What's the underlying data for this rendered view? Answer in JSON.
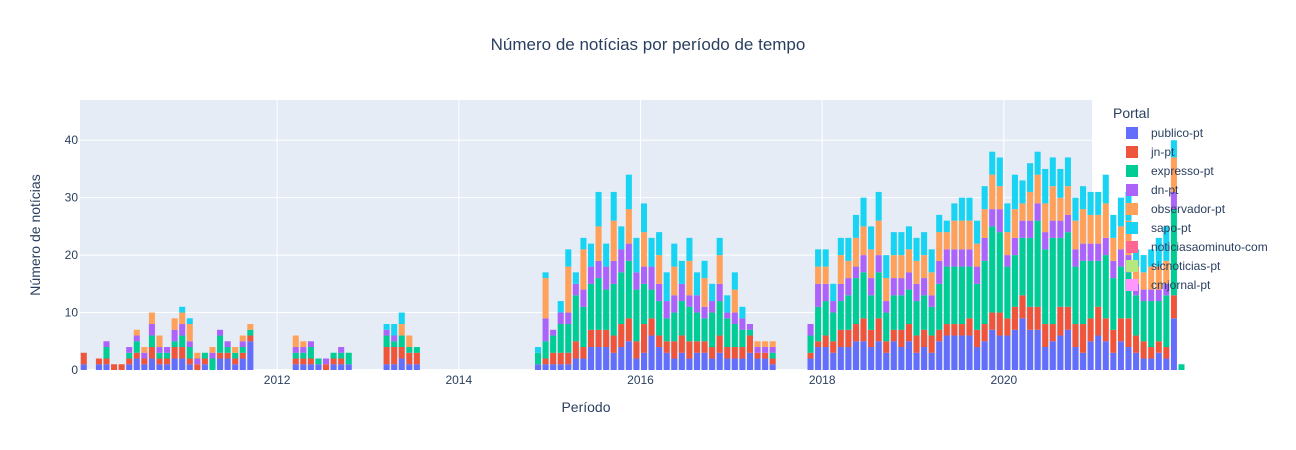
{
  "chart_data": {
    "type": "bar",
    "stacked": true,
    "title": "Número de notícias por período de tempo",
    "xlabel": "Período",
    "ylabel": "Número de notícias",
    "ylim": [
      0,
      47
    ],
    "yticks": [
      0,
      10,
      20,
      30,
      40
    ],
    "xticks": [
      {
        "x": 2012,
        "label": "2012"
      },
      {
        "x": 2014,
        "label": "2014"
      },
      {
        "x": 2016,
        "label": "2016"
      },
      {
        "x": 2018,
        "label": "2018"
      },
      {
        "x": 2020,
        "label": "2020"
      }
    ],
    "xlim": [
      2009.83,
      2020.97
    ],
    "period_start": 2009.83,
    "periods_per_year": 12,
    "grid": true,
    "legend_title": "Portal",
    "legend_position": "right",
    "colors": [
      "#636efa",
      "#EF553B",
      "#00cc96",
      "#ab63fa",
      "#FFA15A",
      "#19d3f3",
      "#FF6692",
      "#B6E880",
      "#FF97FF"
    ],
    "series": [
      {
        "name": "publico-pt",
        "values": [
          1,
          0,
          1,
          1,
          0,
          0,
          1,
          2,
          1,
          2,
          1,
          1,
          2,
          2,
          1,
          0,
          1,
          0,
          2,
          2,
          1,
          2,
          5,
          0,
          0,
          0,
          0,
          0,
          1,
          1,
          1,
          1,
          0,
          1,
          1,
          1,
          0,
          0,
          0,
          0,
          1,
          1,
          2,
          1,
          1,
          0,
          0,
          0,
          0,
          0,
          0,
          0,
          0,
          0,
          0,
          0,
          0,
          0,
          0,
          0,
          1,
          1,
          1,
          1,
          1,
          2,
          2,
          4,
          4,
          4,
          3,
          4,
          5,
          2,
          3,
          6,
          4,
          3,
          2,
          3,
          2,
          3,
          3,
          2,
          3,
          2,
          2,
          2,
          3,
          2,
          2,
          1,
          0,
          0,
          0,
          0,
          2,
          4,
          4,
          3,
          4,
          4,
          5,
          5,
          4,
          5,
          3,
          5,
          4,
          5,
          3,
          4,
          3,
          5,
          6,
          6,
          6,
          6,
          4,
          5,
          7,
          6,
          6,
          7,
          9,
          7,
          7,
          4,
          5,
          6,
          7,
          4,
          3,
          5,
          6,
          5,
          3,
          5,
          4,
          3,
          2,
          2,
          3,
          2,
          9,
          0
        ]
      },
      {
        "name": "jn-pt",
        "values": [
          2,
          0,
          1,
          1,
          1,
          1,
          1,
          1,
          1,
          2,
          1,
          1,
          2,
          2,
          1,
          1,
          1,
          0,
          1,
          1,
          1,
          1,
          1,
          0,
          0,
          0,
          0,
          0,
          1,
          1,
          1,
          0,
          1,
          1,
          1,
          0,
          0,
          0,
          0,
          0,
          3,
          3,
          2,
          2,
          2,
          0,
          0,
          0,
          0,
          0,
          0,
          0,
          0,
          0,
          0,
          0,
          0,
          0,
          0,
          0,
          0,
          1,
          2,
          2,
          2,
          3,
          2,
          3,
          3,
          3,
          3,
          4,
          4,
          3,
          5,
          3,
          2,
          2,
          3,
          3,
          3,
          2,
          2,
          2,
          3,
          2,
          2,
          2,
          3,
          1,
          1,
          1,
          0,
          0,
          0,
          0,
          1,
          1,
          2,
          2,
          3,
          3,
          3,
          4,
          3,
          4,
          2,
          2,
          3,
          3,
          3,
          3,
          3,
          2,
          2,
          2,
          2,
          3,
          3,
          3,
          3,
          4,
          3,
          4,
          4,
          4,
          4,
          4,
          3,
          5,
          4,
          4,
          5,
          4,
          5,
          4,
          4,
          4,
          5,
          3,
          3,
          2,
          2,
          2,
          4,
          0
        ]
      },
      {
        "name": "expresso-pt",
        "values": [
          0,
          0,
          0,
          2,
          0,
          0,
          1,
          2,
          0,
          2,
          1,
          1,
          1,
          2,
          2,
          0,
          1,
          2,
          3,
          1,
          1,
          1,
          1,
          0,
          0,
          0,
          0,
          0,
          1,
          1,
          2,
          1,
          0,
          1,
          1,
          2,
          0,
          0,
          0,
          0,
          2,
          1,
          2,
          1,
          1,
          0,
          0,
          0,
          0,
          0,
          0,
          0,
          0,
          0,
          0,
          0,
          0,
          0,
          0,
          0,
          2,
          3,
          3,
          5,
          5,
          8,
          7,
          8,
          9,
          7,
          9,
          9,
          10,
          9,
          7,
          5,
          6,
          4,
          5,
          6,
          6,
          5,
          4,
          6,
          6,
          5,
          4,
          3,
          1,
          0,
          0,
          1,
          0,
          0,
          0,
          0,
          3,
          6,
          6,
          5,
          5,
          6,
          8,
          8,
          6,
          8,
          5,
          6,
          6,
          6,
          6,
          6,
          5,
          8,
          10,
          10,
          10,
          9,
          8,
          11,
          15,
          14,
          9,
          9,
          10,
          12,
          15,
          13,
          15,
          12,
          13,
          10,
          11,
          10,
          8,
          11,
          9,
          9,
          8,
          7,
          7,
          8,
          7,
          9,
          15,
          1
        ]
      },
      {
        "name": "dn-pt",
        "values": [
          0,
          0,
          0,
          1,
          0,
          0,
          1,
          1,
          1,
          2,
          1,
          1,
          2,
          2,
          1,
          1,
          0,
          1,
          1,
          1,
          0,
          1,
          0,
          0,
          0,
          0,
          0,
          0,
          1,
          1,
          1,
          0,
          1,
          0,
          1,
          0,
          0,
          0,
          0,
          0,
          1,
          1,
          0,
          0,
          0,
          0,
          0,
          0,
          0,
          0,
          0,
          0,
          0,
          0,
          0,
          0,
          0,
          0,
          0,
          0,
          0,
          4,
          1,
          2,
          2,
          2,
          3,
          3,
          3,
          4,
          4,
          4,
          3,
          3,
          3,
          4,
          3,
          3,
          3,
          3,
          2,
          3,
          2,
          2,
          3,
          1,
          2,
          2,
          1,
          1,
          1,
          1,
          0,
          0,
          0,
          0,
          2,
          4,
          3,
          2,
          3,
          3,
          2,
          3,
          3,
          3,
          2,
          3,
          3,
          3,
          3,
          3,
          2,
          4,
          3,
          3,
          3,
          3,
          3,
          4,
          3,
          4,
          2,
          3,
          3,
          3,
          3,
          3,
          3,
          3,
          3,
          3,
          3,
          3,
          3,
          3,
          3,
          3,
          3,
          2,
          2,
          2,
          2,
          2,
          3,
          0
        ]
      },
      {
        "name": "observador-pt",
        "values": [
          0,
          0,
          0,
          0,
          0,
          0,
          0,
          1,
          1,
          2,
          2,
          0,
          2,
          2,
          3,
          1,
          0,
          1,
          0,
          0,
          1,
          1,
          1,
          0,
          0,
          0,
          0,
          0,
          2,
          1,
          0,
          0,
          0,
          0,
          0,
          0,
          0,
          0,
          0,
          0,
          0,
          0,
          2,
          2,
          0,
          0,
          0,
          0,
          0,
          0,
          0,
          0,
          0,
          0,
          0,
          0,
          0,
          0,
          0,
          0,
          0,
          7,
          0,
          0,
          8,
          0,
          7,
          0,
          6,
          0,
          7,
          0,
          6,
          0,
          6,
          0,
          5,
          0,
          5,
          0,
          6,
          0,
          5,
          0,
          5,
          0,
          4,
          0,
          0,
          1,
          1,
          1,
          0,
          0,
          0,
          0,
          0,
          3,
          3,
          0,
          5,
          3,
          5,
          5,
          5,
          6,
          4,
          4,
          4,
          4,
          4,
          4,
          4,
          5,
          3,
          5,
          5,
          5,
          4,
          5,
          6,
          4,
          4,
          5,
          3,
          5,
          5,
          5,
          6,
          4,
          5,
          5,
          6,
          5,
          5,
          6,
          4,
          4,
          6,
          3,
          3,
          4,
          4,
          4,
          6,
          0
        ]
      },
      {
        "name": "sapo-pt",
        "values": [
          0,
          0,
          0,
          0,
          0,
          0,
          0,
          0,
          0,
          0,
          0,
          0,
          0,
          1,
          1,
          0,
          0,
          0,
          0,
          0,
          0,
          0,
          0,
          0,
          0,
          0,
          0,
          0,
          0,
          0,
          0,
          0,
          0,
          0,
          0,
          0,
          0,
          0,
          0,
          0,
          1,
          2,
          2,
          0,
          0,
          0,
          0,
          0,
          0,
          0,
          0,
          0,
          0,
          0,
          0,
          0,
          0,
          0,
          0,
          0,
          1,
          1,
          0,
          2,
          3,
          2,
          2,
          4,
          6,
          4,
          5,
          4,
          6,
          6,
          5,
          5,
          4,
          5,
          4,
          4,
          4,
          4,
          3,
          3,
          3,
          3,
          3,
          2,
          0,
          0,
          0,
          0,
          0,
          0,
          0,
          0,
          0,
          3,
          3,
          3,
          3,
          4,
          4,
          5,
          4,
          5,
          4,
          4,
          4,
          4,
          4,
          4,
          4,
          3,
          2,
          3,
          4,
          4,
          4,
          4,
          4,
          5,
          5,
          6,
          4,
          5,
          4,
          6,
          5,
          5,
          5,
          4,
          4,
          4,
          4,
          5,
          4,
          5,
          5,
          3,
          3,
          3,
          5,
          6,
          3,
          0
        ]
      },
      {
        "name": "noticiasaominuto-com",
        "values": [
          0,
          0,
          0,
          0,
          0,
          0,
          0,
          0,
          0,
          0,
          0,
          0,
          0,
          0,
          0,
          0,
          0,
          0,
          0,
          0,
          0,
          0,
          0,
          0,
          0,
          0,
          0,
          0,
          0,
          0,
          0,
          0,
          0,
          0,
          0,
          0,
          0,
          0,
          0,
          0,
          0,
          0,
          0,
          0,
          0,
          0,
          0,
          0,
          0,
          0,
          0,
          0,
          0,
          0,
          0,
          0,
          0,
          0,
          0,
          0,
          0,
          0,
          0,
          0,
          0,
          0,
          0,
          0,
          0,
          0,
          0,
          0,
          0,
          0,
          0,
          0,
          0,
          0,
          0,
          0,
          0,
          0,
          0,
          0,
          0,
          0,
          0,
          0,
          0,
          0,
          0,
          0,
          0,
          0,
          0,
          0,
          0,
          0,
          0,
          0,
          0,
          0,
          0,
          0,
          0,
          0,
          0,
          0,
          0,
          0,
          0,
          0,
          0,
          0,
          0,
          0,
          0,
          0,
          0,
          0,
          0,
          0,
          0,
          0,
          0,
          0,
          0,
          0,
          0,
          0,
          0,
          0,
          0,
          0,
          0,
          0,
          0,
          0,
          0,
          0,
          0,
          0,
          0,
          0,
          0,
          0
        ]
      },
      {
        "name": "sicnoticias-pt",
        "values": [
          0,
          0,
          0,
          0,
          0,
          0,
          0,
          0,
          0,
          0,
          0,
          0,
          0,
          0,
          0,
          0,
          0,
          0,
          0,
          0,
          0,
          0,
          0,
          0,
          0,
          0,
          0,
          0,
          0,
          0,
          0,
          0,
          0,
          0,
          0,
          0,
          0,
          0,
          0,
          0,
          0,
          0,
          0,
          0,
          0,
          0,
          0,
          0,
          0,
          0,
          0,
          0,
          0,
          0,
          0,
          0,
          0,
          0,
          0,
          0,
          0,
          0,
          0,
          0,
          0,
          0,
          0,
          0,
          0,
          0,
          0,
          0,
          0,
          0,
          0,
          0,
          0,
          0,
          0,
          0,
          0,
          0,
          0,
          0,
          0,
          0,
          0,
          0,
          0,
          0,
          0,
          0,
          0,
          0,
          0,
          0,
          0,
          0,
          0,
          0,
          0,
          0,
          0,
          0,
          0,
          0,
          0,
          0,
          0,
          0,
          0,
          0,
          0,
          0,
          0,
          0,
          0,
          0,
          0,
          0,
          0,
          0,
          0,
          0,
          0,
          0,
          0,
          0,
          0,
          0,
          0,
          0,
          0,
          0,
          0,
          0,
          0,
          0,
          0,
          0,
          0,
          0,
          0,
          0,
          0,
          0
        ]
      },
      {
        "name": "cmjornal-pt",
        "values": [
          0,
          0,
          0,
          0,
          0,
          0,
          0,
          0,
          0,
          0,
          0,
          0,
          0,
          0,
          0,
          0,
          0,
          0,
          0,
          0,
          0,
          0,
          0,
          0,
          0,
          0,
          0,
          0,
          0,
          0,
          0,
          0,
          0,
          0,
          0,
          0,
          0,
          0,
          0,
          0,
          0,
          0,
          0,
          0,
          0,
          0,
          0,
          0,
          0,
          0,
          0,
          0,
          0,
          0,
          0,
          0,
          0,
          0,
          0,
          0,
          0,
          0,
          0,
          0,
          0,
          0,
          0,
          0,
          0,
          0,
          0,
          0,
          0,
          0,
          0,
          0,
          0,
          0,
          0,
          0,
          0,
          0,
          0,
          0,
          0,
          0,
          0,
          0,
          0,
          0,
          0,
          0,
          0,
          0,
          0,
          0,
          0,
          0,
          0,
          0,
          0,
          0,
          0,
          0,
          0,
          0,
          0,
          0,
          0,
          0,
          0,
          0,
          0,
          0,
          0,
          0,
          0,
          0,
          0,
          0,
          0,
          0,
          0,
          0,
          0,
          0,
          0,
          0,
          0,
          0,
          0,
          0,
          0,
          0,
          0,
          0,
          0,
          0,
          0,
          0,
          0,
          0,
          0,
          0,
          0,
          0
        ]
      }
    ]
  }
}
